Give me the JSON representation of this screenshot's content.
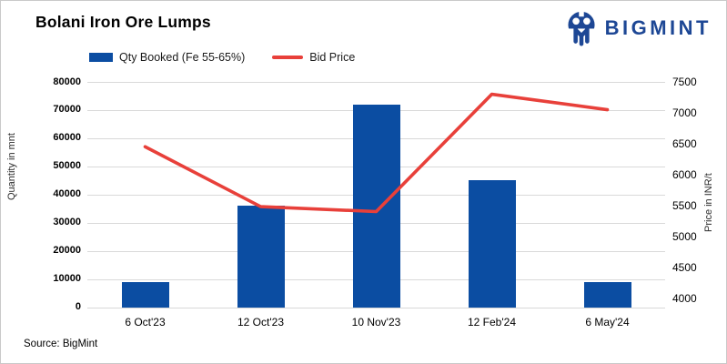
{
  "header": {
    "title": "Bolani Iron Ore Lumps",
    "logo_text": "BIGMINT",
    "logo_color": "#1d4795"
  },
  "legend": [
    {
      "label": "Qty Booked (Fe 55-65%)",
      "type": "bar",
      "color": "#0b4da2"
    },
    {
      "label": "Bid Price",
      "type": "line",
      "color": "#e8403a"
    }
  ],
  "chart_data": {
    "type": "combo",
    "categories": [
      "6 Oct'23",
      "12 Oct'23",
      "10 Nov'23",
      "12 Feb'24",
      "6 May'24"
    ],
    "series": [
      {
        "name": "Qty Booked (Fe 55-65%)",
        "type": "bar",
        "axis": "left",
        "color": "#0b4da2",
        "values": [
          9000,
          36000,
          72000,
          45000,
          9000
        ]
      },
      {
        "name": "Bid Price",
        "type": "line",
        "axis": "right",
        "color": "#e8403a",
        "values": [
          6450,
          5480,
          5400,
          7300,
          7050
        ]
      }
    ],
    "left_axis": {
      "label": "Quantity in mnt",
      "min": 0,
      "max": 80000,
      "step": 10000
    },
    "right_axis": {
      "label": "Price in INR/t",
      "min": 4000,
      "max": 7500,
      "step": 500
    },
    "grid": true,
    "gridline_color": "#d9d9d9",
    "legend_position": "top-left"
  },
  "footer": {
    "source": "Source: BigMint"
  }
}
